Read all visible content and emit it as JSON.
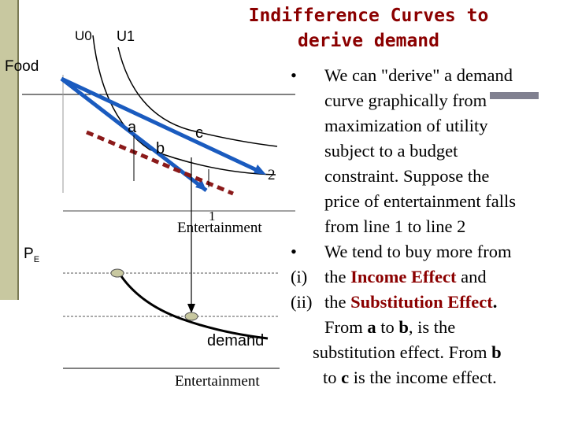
{
  "title": {
    "line1": "Indifference Curves to",
    "line2": "derive demand"
  },
  "diagram": {
    "top": {
      "curve_labels": [
        "U0",
        "U1"
      ],
      "y_axis_label": "Food",
      "x_axis_label": "Entertainment",
      "budget_line_labels": [
        "1",
        "2"
      ],
      "points": [
        "a",
        "b",
        "c"
      ]
    },
    "bottom": {
      "y_axis_label": "P",
      "y_axis_sub": "E",
      "curve_label": "demand",
      "x_axis_label": "Entertainment"
    },
    "colors": {
      "budget_line_1": "#1a5bbf",
      "budget_line_2": "#8b1a1a",
      "curves": "#000000",
      "dots": "#c8c8a0",
      "title": "#8b0000"
    }
  },
  "bullets": {
    "b1": {
      "marker": "•",
      "lines": [
        "We can \"derive\" a demand",
        "curve graphically from",
        "maximization of utility",
        "subject to a budget",
        "constraint.  Suppose the",
        "price of entertainment falls",
        "from line 1 to line 2"
      ]
    },
    "b2": {
      "marker": "•",
      "text": "We tend to buy more from"
    },
    "i": {
      "prefix": "(i)",
      "text": "the",
      "em": "Income Effect",
      "after": "and"
    },
    "ii": {
      "prefix": "(ii)",
      "text": "the",
      "em": "Substitution Effect",
      "after": "."
    },
    "tail": {
      "l1_a": "From",
      "l1_b": "a",
      "l1_c": "to",
      "l1_d": "b",
      "l1_e": ", is the",
      "l2_a": "substitution effect. From",
      "l2_b": "b",
      "l3_a": "to",
      "l3_b": "c",
      "l3_c": "is the income effect."
    }
  }
}
